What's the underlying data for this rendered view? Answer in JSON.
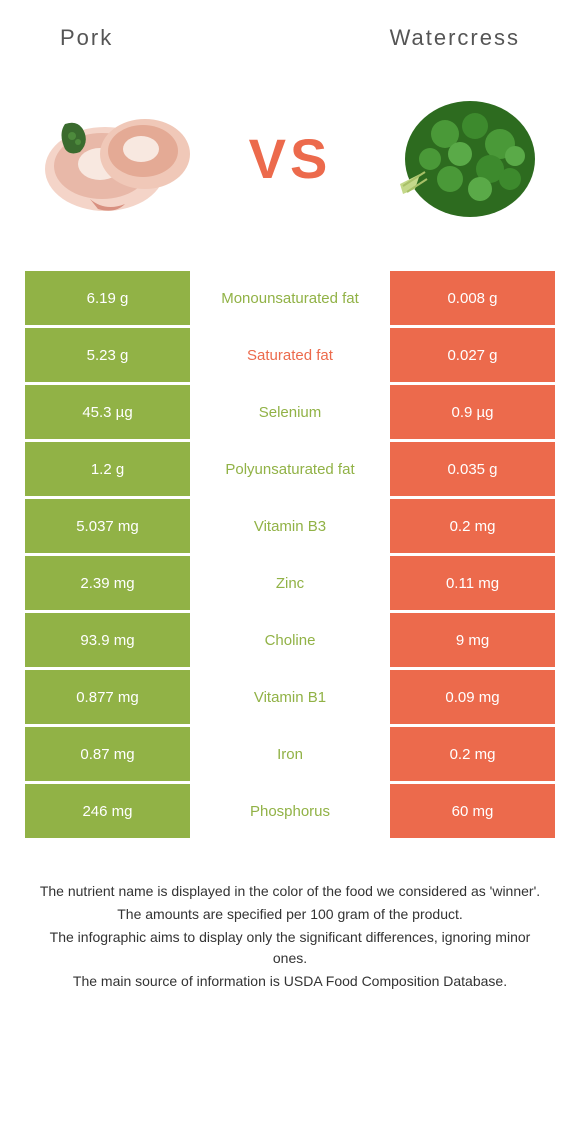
{
  "header": {
    "left_title": "Pork",
    "right_title": "Watercress"
  },
  "vs_label": "VS",
  "colors": {
    "left": "#91b246",
    "right": "#ec6a4c",
    "middle_text_left_winner": "#91b246",
    "middle_text_right_winner": "#ec6a4c"
  },
  "rows": [
    {
      "left": "6.19 g",
      "label": "Monounsaturated fat",
      "right": "0.008 g",
      "winner": "left"
    },
    {
      "left": "5.23 g",
      "label": "Saturated fat",
      "right": "0.027 g",
      "winner": "right"
    },
    {
      "left": "45.3 µg",
      "label": "Selenium",
      "right": "0.9 µg",
      "winner": "left"
    },
    {
      "left": "1.2 g",
      "label": "Polyunsaturated fat",
      "right": "0.035 g",
      "winner": "left"
    },
    {
      "left": "5.037 mg",
      "label": "Vitamin B3",
      "right": "0.2 mg",
      "winner": "left"
    },
    {
      "left": "2.39 mg",
      "label": "Zinc",
      "right": "0.11 mg",
      "winner": "left"
    },
    {
      "left": "93.9 mg",
      "label": "Choline",
      "right": "9 mg",
      "winner": "left"
    },
    {
      "left": "0.877 mg",
      "label": "Vitamin B1",
      "right": "0.09 mg",
      "winner": "left"
    },
    {
      "left": "0.87 mg",
      "label": "Iron",
      "right": "0.2 mg",
      "winner": "left"
    },
    {
      "left": "246 mg",
      "label": "Phosphorus",
      "right": "60 mg",
      "winner": "left"
    }
  ],
  "footer": {
    "line1": "The nutrient name is displayed in the color of the food we considered as 'winner'.",
    "line2": "The amounts are specified per 100 gram of the product.",
    "line3": "The infographic aims to display only the significant differences, ignoring minor ones.",
    "line4": "The main source of information is USDA Food Composition Database."
  }
}
